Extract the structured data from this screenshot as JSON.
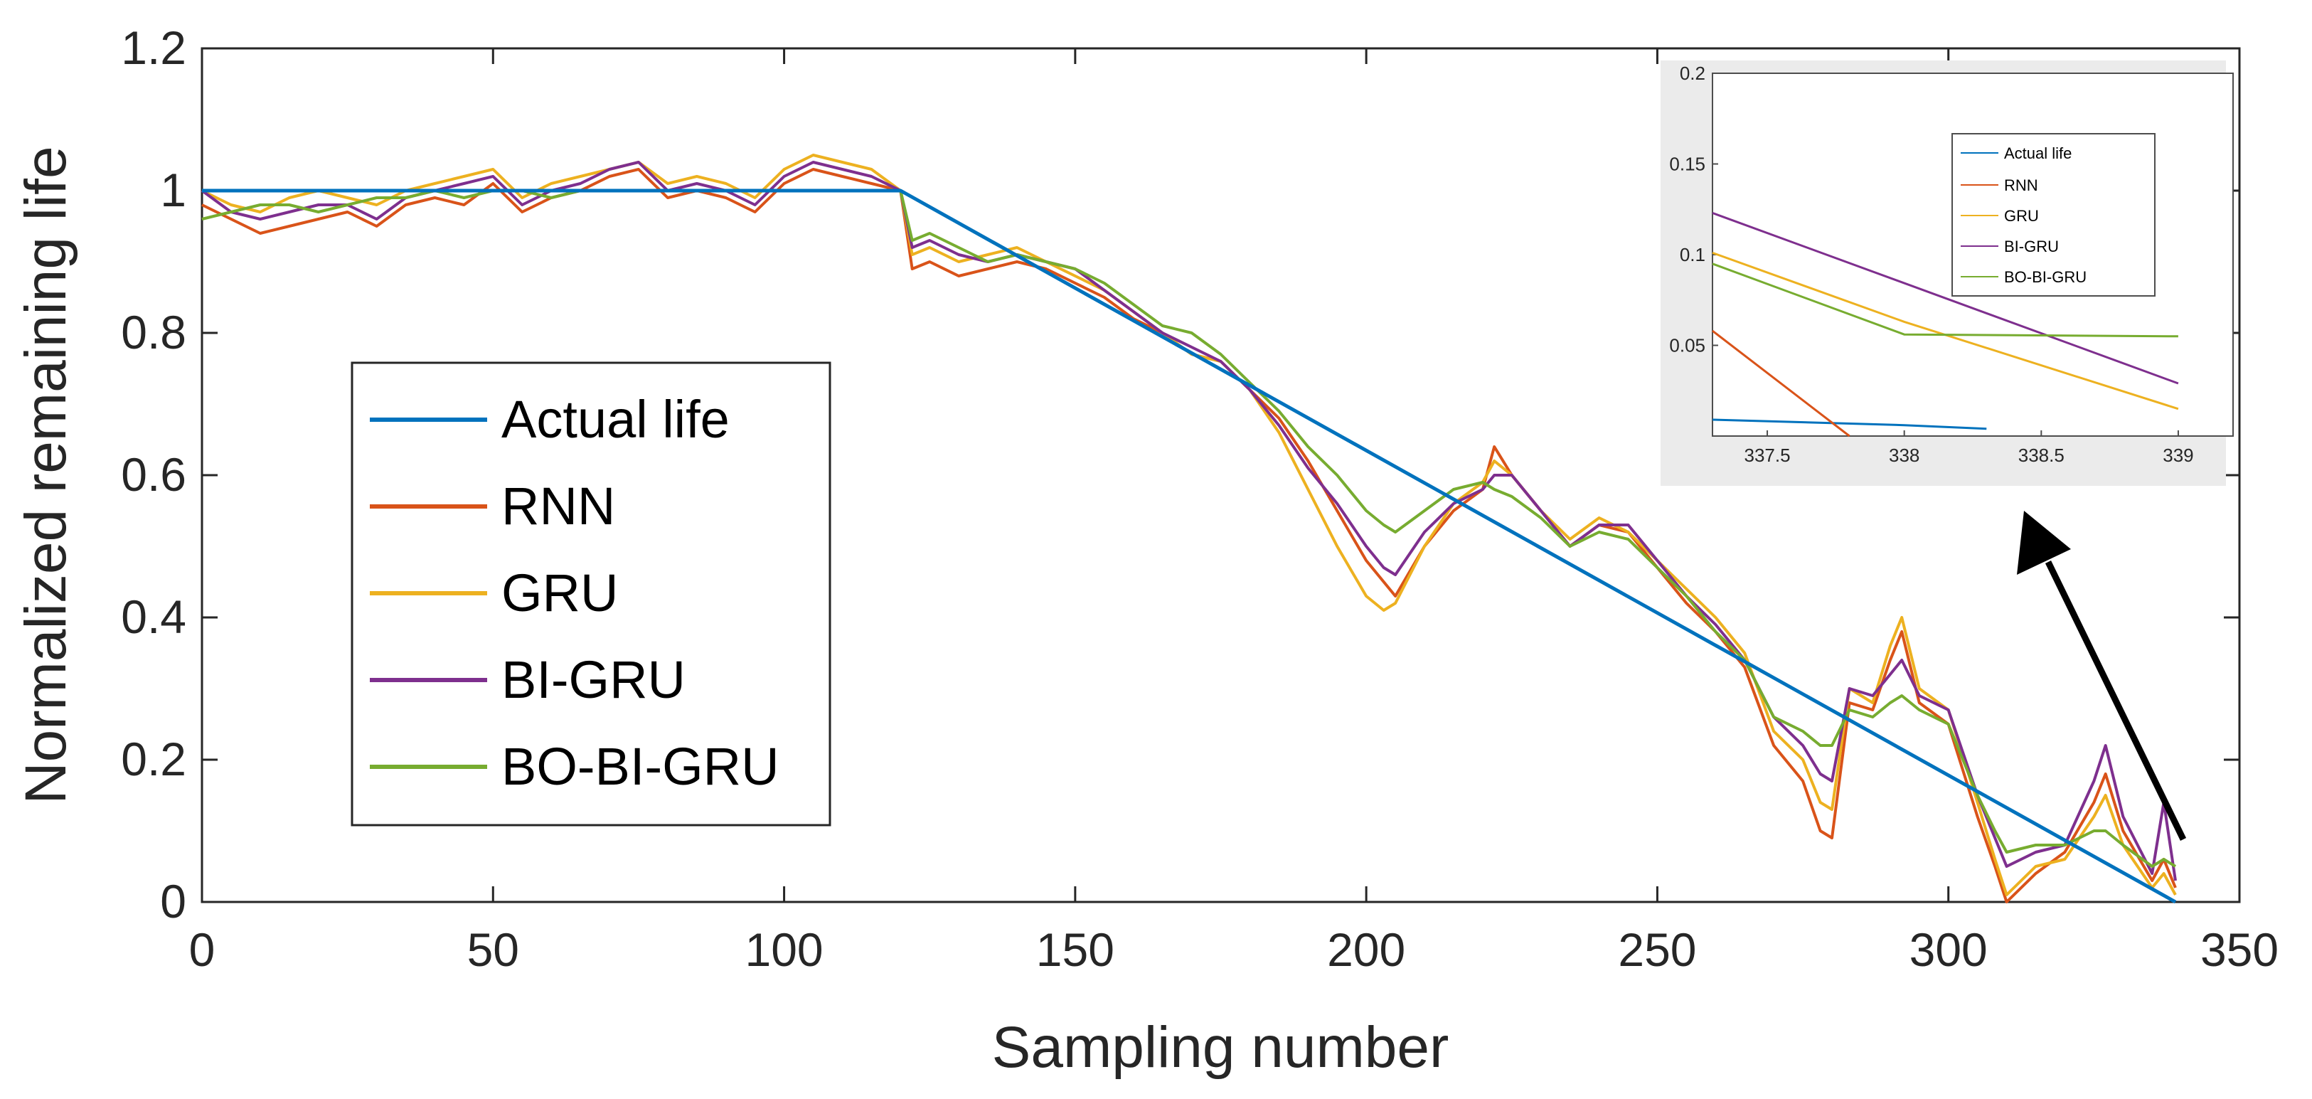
{
  "chart_data": {
    "type": "line",
    "xlabel": "Sampling number",
    "ylabel": "Normalized remaining life",
    "xlim": [
      0,
      350
    ],
    "ylim": [
      0,
      1.2
    ],
    "x_ticks": [
      "0",
      "50",
      "100",
      "150",
      "200",
      "250",
      "300",
      "350"
    ],
    "y_ticks": [
      "0",
      "0.2",
      "0.4",
      "0.6",
      "0.8",
      "1",
      "1.2"
    ],
    "legend": [
      "Actual life",
      "RNN",
      "GRU",
      "BI-GRU",
      "BO-BI-GRU"
    ],
    "colors": {
      "actual": "#0072BD",
      "rnn": "#D95319",
      "gru": "#EDB120",
      "bigru": "#7E2F8E",
      "bobigru": "#77AC30"
    },
    "series": [
      {
        "name": "Actual life",
        "x": [
          0,
          120,
          339
        ],
        "values": [
          1.0,
          1.0,
          0.0
        ]
      },
      {
        "name": "RNN",
        "x": [
          0,
          5,
          10,
          15,
          20,
          25,
          30,
          35,
          40,
          45,
          50,
          55,
          60,
          65,
          70,
          75,
          80,
          85,
          90,
          95,
          100,
          105,
          110,
          115,
          120,
          122,
          125,
          130,
          135,
          140,
          145,
          150,
          155,
          160,
          165,
          170,
          175,
          180,
          185,
          190,
          195,
          200,
          203,
          205,
          210,
          215,
          220,
          222,
          225,
          230,
          235,
          240,
          245,
          250,
          255,
          260,
          265,
          270,
          275,
          278,
          280,
          283,
          287,
          290,
          292,
          295,
          300,
          305,
          308,
          310,
          315,
          320,
          325,
          327,
          330,
          335,
          337,
          339
        ],
        "values": [
          0.98,
          0.96,
          0.94,
          0.95,
          0.96,
          0.97,
          0.95,
          0.98,
          0.99,
          0.98,
          1.01,
          0.97,
          0.99,
          1.0,
          1.02,
          1.03,
          0.99,
          1.0,
          0.99,
          0.97,
          1.01,
          1.03,
          1.02,
          1.01,
          1.0,
          0.89,
          0.9,
          0.88,
          0.89,
          0.9,
          0.89,
          0.87,
          0.85,
          0.82,
          0.8,
          0.77,
          0.76,
          0.72,
          0.68,
          0.62,
          0.55,
          0.48,
          0.45,
          0.43,
          0.5,
          0.55,
          0.58,
          0.64,
          0.6,
          0.55,
          0.5,
          0.53,
          0.52,
          0.47,
          0.42,
          0.38,
          0.33,
          0.22,
          0.17,
          0.1,
          0.09,
          0.28,
          0.27,
          0.34,
          0.38,
          0.28,
          0.25,
          0.12,
          0.05,
          0.0,
          0.04,
          0.07,
          0.14,
          0.18,
          0.1,
          0.03,
          0.06,
          0.02
        ]
      },
      {
        "name": "GRU",
        "x": [
          0,
          5,
          10,
          15,
          20,
          25,
          30,
          35,
          40,
          45,
          50,
          55,
          60,
          65,
          70,
          75,
          80,
          85,
          90,
          95,
          100,
          105,
          110,
          115,
          120,
          122,
          125,
          130,
          135,
          140,
          145,
          150,
          155,
          160,
          165,
          170,
          175,
          180,
          185,
          190,
          195,
          200,
          203,
          205,
          210,
          215,
          220,
          222,
          225,
          230,
          235,
          240,
          245,
          250,
          255,
          260,
          265,
          270,
          275,
          278,
          280,
          283,
          287,
          290,
          292,
          295,
          300,
          305,
          308,
          310,
          315,
          320,
          325,
          327,
          330,
          335,
          337,
          339
        ],
        "values": [
          1.0,
          0.98,
          0.97,
          0.99,
          1.0,
          0.99,
          0.98,
          1.0,
          1.01,
          1.02,
          1.03,
          0.99,
          1.01,
          1.02,
          1.03,
          1.04,
          1.01,
          1.02,
          1.01,
          0.99,
          1.03,
          1.05,
          1.04,
          1.03,
          1.0,
          0.91,
          0.92,
          0.9,
          0.91,
          0.92,
          0.9,
          0.88,
          0.86,
          0.83,
          0.8,
          0.77,
          0.76,
          0.72,
          0.66,
          0.58,
          0.5,
          0.43,
          0.41,
          0.42,
          0.5,
          0.56,
          0.59,
          0.62,
          0.6,
          0.55,
          0.51,
          0.54,
          0.52,
          0.48,
          0.44,
          0.4,
          0.35,
          0.24,
          0.2,
          0.14,
          0.13,
          0.3,
          0.28,
          0.36,
          0.4,
          0.3,
          0.27,
          0.14,
          0.06,
          0.01,
          0.05,
          0.06,
          0.12,
          0.15,
          0.08,
          0.02,
          0.04,
          0.01
        ]
      },
      {
        "name": "BI-GRU",
        "x": [
          0,
          5,
          10,
          15,
          20,
          25,
          30,
          35,
          40,
          45,
          50,
          55,
          60,
          65,
          70,
          75,
          80,
          85,
          90,
          95,
          100,
          105,
          110,
          115,
          120,
          122,
          125,
          130,
          135,
          140,
          145,
          150,
          155,
          160,
          165,
          170,
          175,
          180,
          185,
          190,
          195,
          200,
          203,
          205,
          210,
          215,
          220,
          222,
          225,
          230,
          235,
          240,
          245,
          250,
          255,
          260,
          265,
          270,
          275,
          278,
          280,
          283,
          287,
          290,
          292,
          295,
          300,
          305,
          308,
          310,
          315,
          320,
          325,
          327,
          330,
          335,
          337,
          339
        ],
        "values": [
          1.0,
          0.97,
          0.96,
          0.97,
          0.98,
          0.98,
          0.96,
          0.99,
          1.0,
          1.01,
          1.02,
          0.98,
          1.0,
          1.01,
          1.03,
          1.04,
          1.0,
          1.01,
          1.0,
          0.98,
          1.02,
          1.04,
          1.03,
          1.02,
          1.0,
          0.92,
          0.93,
          0.91,
          0.9,
          0.91,
          0.9,
          0.89,
          0.86,
          0.83,
          0.8,
          0.78,
          0.76,
          0.72,
          0.67,
          0.61,
          0.56,
          0.5,
          0.47,
          0.46,
          0.52,
          0.56,
          0.58,
          0.6,
          0.6,
          0.55,
          0.5,
          0.53,
          0.53,
          0.48,
          0.43,
          0.39,
          0.34,
          0.26,
          0.22,
          0.18,
          0.17,
          0.3,
          0.29,
          0.32,
          0.34,
          0.29,
          0.27,
          0.15,
          0.09,
          0.05,
          0.07,
          0.08,
          0.17,
          0.22,
          0.12,
          0.04,
          0.14,
          0.03
        ]
      },
      {
        "name": "BO-BI-GRU",
        "x": [
          0,
          5,
          10,
          15,
          20,
          25,
          30,
          35,
          40,
          45,
          50,
          55,
          60,
          65,
          70,
          75,
          80,
          85,
          90,
          95,
          100,
          105,
          110,
          115,
          120,
          122,
          125,
          130,
          135,
          140,
          145,
          150,
          155,
          160,
          165,
          170,
          175,
          180,
          185,
          190,
          195,
          200,
          203,
          205,
          210,
          215,
          220,
          222,
          225,
          230,
          235,
          240,
          245,
          250,
          255,
          260,
          265,
          270,
          275,
          278,
          280,
          283,
          287,
          290,
          292,
          295,
          300,
          305,
          308,
          310,
          315,
          320,
          325,
          327,
          330,
          335,
          337,
          339
        ],
        "values": [
          0.96,
          0.97,
          0.98,
          0.98,
          0.97,
          0.98,
          0.99,
          0.99,
          1.0,
          0.99,
          1.0,
          1.0,
          0.99,
          1.0,
          1.0,
          1.0,
          1.0,
          1.0,
          1.0,
          1.0,
          1.0,
          1.0,
          1.0,
          1.0,
          1.0,
          0.93,
          0.94,
          0.92,
          0.9,
          0.91,
          0.9,
          0.89,
          0.87,
          0.84,
          0.81,
          0.8,
          0.77,
          0.73,
          0.69,
          0.64,
          0.6,
          0.55,
          0.53,
          0.52,
          0.55,
          0.58,
          0.59,
          0.58,
          0.57,
          0.54,
          0.5,
          0.52,
          0.51,
          0.47,
          0.43,
          0.38,
          0.34,
          0.26,
          0.24,
          0.22,
          0.22,
          0.27,
          0.26,
          0.28,
          0.29,
          0.27,
          0.25,
          0.15,
          0.1,
          0.07,
          0.08,
          0.08,
          0.1,
          0.1,
          0.08,
          0.05,
          0.06,
          0.05
        ]
      }
    ],
    "inset": {
      "xlim": [
        337.3,
        339.2
      ],
      "ylim": [
        0,
        0.2
      ],
      "x_ticks": [
        "337.5",
        "338",
        "338.5",
        "339"
      ],
      "y_ticks": [
        "0.05",
        "0.1",
        "0.15",
        "0.2"
      ],
      "legend": [
        "Actual life",
        "RNN",
        "GRU",
        "BI-GRU",
        "BO-BI-GRU"
      ],
      "series": [
        {
          "name": "Actual life",
          "x": [
            337.3,
            338.0,
            338.3
          ],
          "values": [
            0.009,
            0.006,
            0.004
          ]
        },
        {
          "name": "RNN",
          "x": [
            337.3,
            337.8
          ],
          "values": [
            0.058,
            0.0
          ]
        },
        {
          "name": "GRU",
          "x": [
            337.3,
            338.0,
            339.0
          ],
          "values": [
            0.101,
            0.063,
            0.015
          ]
        },
        {
          "name": "BI-GRU",
          "x": [
            337.3,
            339.0
          ],
          "values": [
            0.123,
            0.029
          ]
        },
        {
          "name": "BO-BI-GRU",
          "x": [
            337.3,
            338.0,
            339.0
          ],
          "values": [
            0.095,
            0.056,
            0.055
          ]
        }
      ]
    }
  }
}
